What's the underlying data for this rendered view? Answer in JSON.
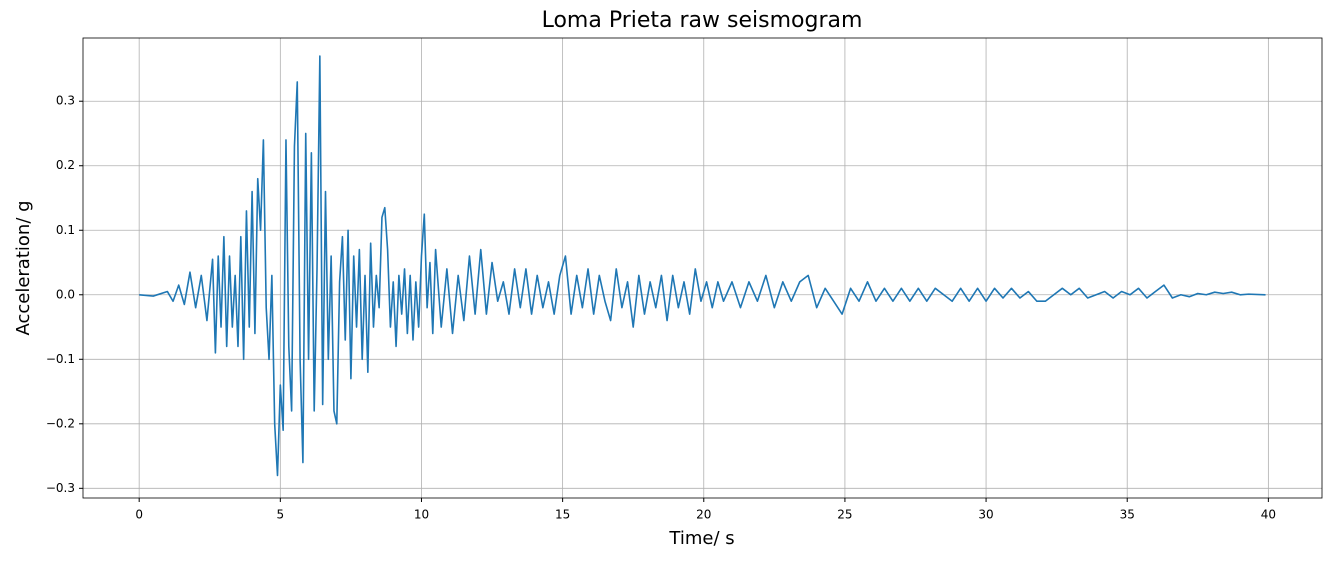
{
  "chart_data": {
    "type": "line",
    "title": "Loma Prieta raw seismogram",
    "x_label": "Time/ s",
    "y_label": "Acceleration/ g",
    "color": "#1f77b4",
    "grid": true,
    "xlim": [
      -1.99,
      41.9
    ],
    "ylim": [
      -0.315,
      0.398
    ],
    "xticks": [
      0,
      5,
      10,
      15,
      20,
      25,
      30,
      35,
      40
    ],
    "yticks": [
      {
        "value": -0.3,
        "label": "−0.3"
      },
      {
        "value": -0.2,
        "label": "−0.2"
      },
      {
        "value": -0.1,
        "label": "−0.1"
      },
      {
        "value": 0,
        "label": "0.0"
      },
      0.1,
      0.2,
      0.3
    ],
    "x": [
      0,
      0.5,
      1.0,
      1.2,
      1.4,
      1.6,
      1.8,
      2.0,
      2.2,
      2.4,
      2.6,
      2.7,
      2.8,
      2.9,
      3.0,
      3.1,
      3.2,
      3.3,
      3.4,
      3.5,
      3.6,
      3.7,
      3.8,
      3.9,
      4.0,
      4.1,
      4.2,
      4.3,
      4.4,
      4.5,
      4.6,
      4.7,
      4.8,
      4.9,
      5.0,
      5.1,
      5.2,
      5.3,
      5.4,
      5.5,
      5.6,
      5.7,
      5.8,
      5.9,
      6.0,
      6.1,
      6.2,
      6.3,
      6.4,
      6.5,
      6.6,
      6.7,
      6.8,
      6.9,
      7.0,
      7.1,
      7.2,
      7.3,
      7.4,
      7.5,
      7.6,
      7.7,
      7.8,
      7.9,
      8.0,
      8.1,
      8.2,
      8.3,
      8.4,
      8.5,
      8.6,
      8.7,
      8.8,
      8.9,
      9.0,
      9.1,
      9.2,
      9.3,
      9.4,
      9.5,
      9.6,
      9.7,
      9.8,
      9.9,
      10.0,
      10.1,
      10.2,
      10.3,
      10.4,
      10.5,
      10.7,
      10.9,
      11.1,
      11.3,
      11.5,
      11.7,
      11.9,
      12.1,
      12.3,
      12.5,
      12.7,
      12.9,
      13.1,
      13.3,
      13.5,
      13.7,
      13.9,
      14.1,
      14.3,
      14.5,
      14.7,
      14.9,
      15.1,
      15.3,
      15.5,
      15.7,
      15.9,
      16.1,
      16.3,
      16.5,
      16.7,
      16.9,
      17.1,
      17.3,
      17.5,
      17.7,
      17.9,
      18.1,
      18.3,
      18.5,
      18.7,
      18.9,
      19.1,
      19.3,
      19.5,
      19.7,
      19.9,
      20.1,
      20.3,
      20.5,
      20.7,
      21.0,
      21.3,
      21.6,
      21.9,
      22.2,
      22.5,
      22.8,
      23.1,
      23.4,
      23.7,
      24.0,
      24.3,
      24.6,
      24.9,
      25.2,
      25.5,
      25.8,
      26.1,
      26.4,
      26.7,
      27.0,
      27.3,
      27.6,
      27.9,
      28.2,
      28.5,
      28.8,
      29.1,
      29.4,
      29.7,
      30.0,
      30.3,
      30.6,
      30.9,
      31.2,
      31.5,
      31.8,
      32.1,
      32.4,
      32.7,
      33.0,
      33.3,
      33.6,
      33.9,
      34.2,
      34.5,
      34.8,
      35.1,
      35.4,
      35.7,
      36.0,
      36.3,
      36.6,
      36.9,
      37.2,
      37.5,
      37.8,
      38.1,
      38.4,
      38.7,
      39.0,
      39.3,
      39.9
    ],
    "values": [
      0,
      -0.002,
      0.005,
      -0.01,
      0.015,
      -0.015,
      0.035,
      -0.02,
      0.03,
      -0.04,
      0.055,
      -0.09,
      0.06,
      -0.05,
      0.09,
      -0.08,
      0.06,
      -0.05,
      0.03,
      -0.08,
      0.09,
      -0.1,
      0.13,
      -0.05,
      0.16,
      -0.06,
      0.18,
      0.1,
      0.24,
      -0.02,
      -0.1,
      0.03,
      -0.2,
      -0.28,
      -0.14,
      -0.21,
      0.24,
      -0.08,
      -0.18,
      0.23,
      0.33,
      -0.1,
      -0.26,
      0.25,
      -0.1,
      0.22,
      -0.18,
      0.04,
      0.37,
      -0.17,
      0.16,
      -0.1,
      0.06,
      -0.18,
      -0.2,
      0.02,
      0.09,
      -0.07,
      0.1,
      -0.13,
      0.06,
      -0.05,
      0.07,
      -0.1,
      0.03,
      -0.12,
      0.08,
      -0.05,
      0.03,
      -0.02,
      0.12,
      0.135,
      0.07,
      -0.05,
      0.02,
      -0.08,
      0.03,
      -0.03,
      0.04,
      -0.06,
      0.03,
      -0.07,
      0.02,
      -0.05,
      0.06,
      0.125,
      -0.02,
      0.05,
      -0.06,
      0.07,
      -0.05,
      0.04,
      -0.06,
      0.03,
      -0.04,
      0.06,
      -0.03,
      0.07,
      -0.03,
      0.05,
      -0.01,
      0.02,
      -0.03,
      0.04,
      -0.02,
      0.04,
      -0.03,
      0.03,
      -0.02,
      0.02,
      -0.03,
      0.03,
      0.06,
      -0.03,
      0.03,
      -0.02,
      0.04,
      -0.03,
      0.03,
      -0.01,
      -0.04,
      0.04,
      -0.02,
      0.02,
      -0.05,
      0.03,
      -0.03,
      0.02,
      -0.02,
      0.03,
      -0.04,
      0.03,
      -0.02,
      0.02,
      -0.03,
      0.04,
      -0.01,
      0.02,
      -0.02,
      0.02,
      -0.01,
      0.02,
      -0.02,
      0.02,
      -0.01,
      0.03,
      -0.02,
      0.02,
      -0.01,
      0.02,
      0.03,
      -0.02,
      0.01,
      -0.01,
      -0.03,
      0.01,
      -0.01,
      0.02,
      -0.01,
      0.01,
      -0.01,
      0.01,
      -0.01,
      0.01,
      -0.01,
      0.01,
      0.0,
      -0.01,
      0.01,
      -0.01,
      0.01,
      -0.01,
      0.01,
      -0.005,
      0.01,
      -0.005,
      0.005,
      -0.01,
      -0.01,
      0.0,
      0.01,
      0.0,
      0.01,
      -0.005,
      0.0,
      0.005,
      -0.005,
      0.005,
      0.0,
      0.01,
      -0.005,
      0.005,
      0.015,
      -0.005,
      0.0,
      -0.003,
      0.002,
      0.0,
      0.004,
      0.002,
      0.004,
      0.0,
      0.001,
      0.0
    ]
  }
}
